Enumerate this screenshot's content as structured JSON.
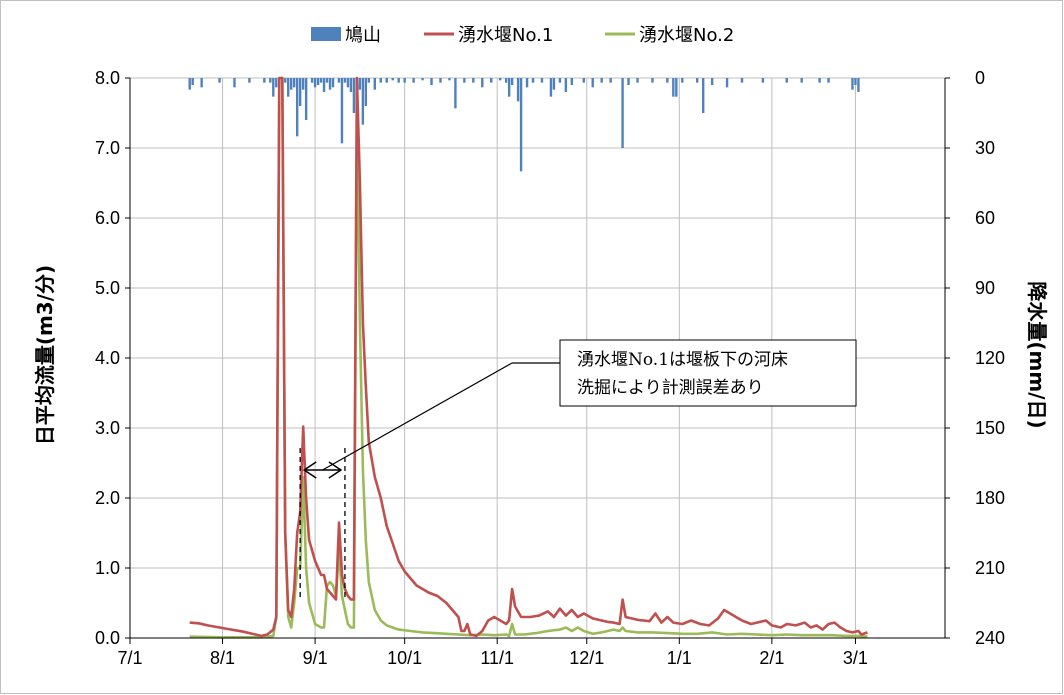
{
  "chart_data": {
    "type": "bar+line",
    "legend": {
      "position": "top",
      "entries": [
        {
          "label": "鳩山",
          "kind": "bar",
          "color": "#4f81bd"
        },
        {
          "label": "湧水堰No.1",
          "kind": "line",
          "color": "#c0504d"
        },
        {
          "label": "湧水堰No.2",
          "kind": "line",
          "color": "#9bbb59"
        }
      ]
    },
    "y_left": {
      "label": "日平均流量(m3/分)",
      "range": [
        0,
        8
      ],
      "ticks": [
        "0.0",
        "1.0",
        "2.0",
        "3.0",
        "4.0",
        "5.0",
        "6.0",
        "7.0",
        "8.0"
      ]
    },
    "y_right": {
      "label": "降水量(mm/日)",
      "range": [
        0,
        240
      ],
      "reversed": true,
      "ticks": [
        "0",
        "30",
        "60",
        "90",
        "120",
        "150",
        "180",
        "210",
        "240"
      ]
    },
    "x_axis": {
      "range_days": [
        0,
        273
      ],
      "ticks": [
        {
          "label": "7/1",
          "day": 0
        },
        {
          "label": "8/1",
          "day": 31
        },
        {
          "label": "9/1",
          "day": 62
        },
        {
          "label": "10/1",
          "day": 92
        },
        {
          "label": "11/1",
          "day": 123
        },
        {
          "label": "12/1",
          "day": 153
        },
        {
          "label": "1/1",
          "day": 184
        },
        {
          "label": "2/1",
          "day": 215
        },
        {
          "label": "3/1",
          "day": 243
        }
      ]
    },
    "grid": true,
    "annotation": {
      "lines": [
        "湧水堰No.1は堰板下の河床",
        "洗掘により計測誤差あり"
      ],
      "interval_days": [
        57,
        72
      ]
    },
    "series": [
      {
        "name": "湧水堰No.1",
        "color": "#c0504d",
        "points": [
          [
            20,
            0.22
          ],
          [
            23,
            0.21
          ],
          [
            26,
            0.18
          ],
          [
            30,
            0.15
          ],
          [
            34,
            0.12
          ],
          [
            38,
            0.09
          ],
          [
            42,
            0.05
          ],
          [
            44,
            0.03
          ],
          [
            46,
            0.05
          ],
          [
            48,
            0.12
          ],
          [
            49,
            0.3
          ],
          [
            50,
            8.0
          ],
          [
            51,
            8.0
          ],
          [
            52,
            1.5
          ],
          [
            53,
            0.4
          ],
          [
            54,
            0.3
          ],
          [
            55,
            0.7
          ],
          [
            56,
            1.5
          ],
          [
            57,
            1.8
          ],
          [
            58,
            3.02
          ],
          [
            59,
            2.0
          ],
          [
            60,
            1.4
          ],
          [
            62,
            1.1
          ],
          [
            64,
            0.9
          ],
          [
            65,
            0.9
          ],
          [
            66,
            0.7
          ],
          [
            67,
            0.65
          ],
          [
            68,
            0.6
          ],
          [
            69,
            0.55
          ],
          [
            70,
            1.65
          ],
          [
            71,
            0.9
          ],
          [
            72,
            0.7
          ],
          [
            73,
            0.6
          ],
          [
            74,
            0.55
          ],
          [
            75,
            0.55
          ],
          [
            76,
            8.0
          ],
          [
            77,
            6.5
          ],
          [
            78,
            4.5
          ],
          [
            79,
            3.6
          ],
          [
            80,
            2.8
          ],
          [
            82,
            2.3
          ],
          [
            84,
            2.0
          ],
          [
            86,
            1.6
          ],
          [
            88,
            1.35
          ],
          [
            90,
            1.1
          ],
          [
            92,
            0.95
          ],
          [
            94,
            0.85
          ],
          [
            96,
            0.75
          ],
          [
            98,
            0.7
          ],
          [
            100,
            0.65
          ],
          [
            103,
            0.6
          ],
          [
            106,
            0.5
          ],
          [
            108,
            0.4
          ],
          [
            110,
            0.3
          ],
          [
            111,
            0.1
          ],
          [
            112,
            0.1
          ],
          [
            113,
            0.2
          ],
          [
            114,
            0.05
          ],
          [
            116,
            0.03
          ],
          [
            118,
            0.1
          ],
          [
            120,
            0.25
          ],
          [
            122,
            0.3
          ],
          [
            124,
            0.25
          ],
          [
            126,
            0.2
          ],
          [
            127,
            0.25
          ],
          [
            128,
            0.7
          ],
          [
            129,
            0.45
          ],
          [
            131,
            0.3
          ],
          [
            134,
            0.3
          ],
          [
            137,
            0.32
          ],
          [
            140,
            0.38
          ],
          [
            142,
            0.3
          ],
          [
            144,
            0.42
          ],
          [
            146,
            0.32
          ],
          [
            148,
            0.4
          ],
          [
            150,
            0.3
          ],
          [
            152,
            0.35
          ],
          [
            155,
            0.28
          ],
          [
            158,
            0.25
          ],
          [
            160,
            0.23
          ],
          [
            162,
            0.22
          ],
          [
            164,
            0.2
          ],
          [
            165,
            0.55
          ],
          [
            166,
            0.3
          ],
          [
            168,
            0.28
          ],
          [
            170,
            0.26
          ],
          [
            172,
            0.25
          ],
          [
            174,
            0.24
          ],
          [
            176,
            0.35
          ],
          [
            178,
            0.22
          ],
          [
            180,
            0.3
          ],
          [
            182,
            0.22
          ],
          [
            185,
            0.2
          ],
          [
            188,
            0.25
          ],
          [
            191,
            0.2
          ],
          [
            194,
            0.18
          ],
          [
            197,
            0.28
          ],
          [
            199,
            0.4
          ],
          [
            201,
            0.35
          ],
          [
            203,
            0.3
          ],
          [
            205,
            0.25
          ],
          [
            208,
            0.2
          ],
          [
            210,
            0.22
          ],
          [
            213,
            0.25
          ],
          [
            215,
            0.18
          ],
          [
            218,
            0.15
          ],
          [
            220,
            0.2
          ],
          [
            223,
            0.18
          ],
          [
            226,
            0.22
          ],
          [
            228,
            0.15
          ],
          [
            230,
            0.18
          ],
          [
            232,
            0.12
          ],
          [
            234,
            0.2
          ],
          [
            236,
            0.22
          ],
          [
            238,
            0.15
          ],
          [
            240,
            0.1
          ],
          [
            242,
            0.08
          ],
          [
            244,
            0.1
          ],
          [
            245,
            0.05
          ],
          [
            247,
            0.08
          ]
        ]
      },
      {
        "name": "湧水堰No.2",
        "color": "#9bbb59",
        "points": [
          [
            20,
            0.02
          ],
          [
            30,
            0.01
          ],
          [
            40,
            0.01
          ],
          [
            44,
            0.01
          ],
          [
            48,
            0.03
          ],
          [
            49,
            0.3
          ],
          [
            50,
            8.0
          ],
          [
            51,
            8.0
          ],
          [
            52,
            1.5
          ],
          [
            53,
            0.3
          ],
          [
            54,
            0.15
          ],
          [
            55,
            0.5
          ],
          [
            56,
            1.0
          ],
          [
            57,
            1.0
          ],
          [
            58,
            2.3
          ],
          [
            59,
            1.0
          ],
          [
            60,
            0.5
          ],
          [
            62,
            0.2
          ],
          [
            64,
            0.15
          ],
          [
            65,
            0.15
          ],
          [
            66,
            0.75
          ],
          [
            67,
            0.8
          ],
          [
            68,
            0.75
          ],
          [
            69,
            0.6
          ],
          [
            70,
            1.3
          ],
          [
            71,
            0.6
          ],
          [
            72,
            0.4
          ],
          [
            73,
            0.2
          ],
          [
            74,
            0.15
          ],
          [
            75,
            0.15
          ],
          [
            76,
            7.6
          ],
          [
            77,
            4.5
          ],
          [
            78,
            2.4
          ],
          [
            79,
            1.4
          ],
          [
            80,
            0.8
          ],
          [
            82,
            0.4
          ],
          [
            84,
            0.25
          ],
          [
            86,
            0.18
          ],
          [
            88,
            0.15
          ],
          [
            90,
            0.12
          ],
          [
            94,
            0.1
          ],
          [
            98,
            0.08
          ],
          [
            102,
            0.07
          ],
          [
            106,
            0.06
          ],
          [
            110,
            0.05
          ],
          [
            114,
            0.04
          ],
          [
            118,
            0.05
          ],
          [
            122,
            0.04
          ],
          [
            126,
            0.05
          ],
          [
            127,
            0.03
          ],
          [
            128,
            0.2
          ],
          [
            129,
            0.05
          ],
          [
            132,
            0.05
          ],
          [
            136,
            0.07
          ],
          [
            140,
            0.1
          ],
          [
            144,
            0.12
          ],
          [
            146,
            0.15
          ],
          [
            148,
            0.1
          ],
          [
            150,
            0.15
          ],
          [
            152,
            0.1
          ],
          [
            155,
            0.06
          ],
          [
            158,
            0.08
          ],
          [
            160,
            0.1
          ],
          [
            162,
            0.12
          ],
          [
            164,
            0.1
          ],
          [
            165,
            0.15
          ],
          [
            166,
            0.1
          ],
          [
            170,
            0.08
          ],
          [
            175,
            0.08
          ],
          [
            180,
            0.07
          ],
          [
            185,
            0.06
          ],
          [
            190,
            0.06
          ],
          [
            195,
            0.08
          ],
          [
            200,
            0.05
          ],
          [
            205,
            0.06
          ],
          [
            210,
            0.05
          ],
          [
            215,
            0.04
          ],
          [
            220,
            0.05
          ],
          [
            225,
            0.04
          ],
          [
            230,
            0.04
          ],
          [
            235,
            0.04
          ],
          [
            240,
            0.03
          ],
          [
            244,
            0.03
          ],
          [
            247,
            0.02
          ]
        ]
      },
      {
        "name": "鳩山",
        "type": "bar",
        "color": "#4f81bd",
        "points": [
          [
            20,
            5
          ],
          [
            21,
            3
          ],
          [
            24,
            4
          ],
          [
            30,
            2
          ],
          [
            35,
            4
          ],
          [
            40,
            2
          ],
          [
            45,
            2
          ],
          [
            47,
            2
          ],
          [
            48,
            8
          ],
          [
            49,
            4
          ],
          [
            50,
            17
          ],
          [
            51,
            13
          ],
          [
            52,
            2
          ],
          [
            53,
            8
          ],
          [
            54,
            5
          ],
          [
            55,
            4
          ],
          [
            56,
            25
          ],
          [
            57,
            12
          ],
          [
            58,
            5
          ],
          [
            59,
            18
          ],
          [
            61,
            2
          ],
          [
            62,
            4
          ],
          [
            63,
            3
          ],
          [
            64,
            2
          ],
          [
            65,
            6
          ],
          [
            66,
            2
          ],
          [
            67,
            5
          ],
          [
            68,
            4
          ],
          [
            70,
            2
          ],
          [
            71,
            28
          ],
          [
            72,
            2
          ],
          [
            73,
            4
          ],
          [
            74,
            6
          ],
          [
            75,
            15
          ],
          [
            76,
            17
          ],
          [
            77,
            5
          ],
          [
            78,
            20
          ],
          [
            79,
            12
          ],
          [
            80,
            2
          ],
          [
            82,
            5
          ],
          [
            84,
            2
          ],
          [
            86,
            2
          ],
          [
            88,
            1
          ],
          [
            90,
            2
          ],
          [
            92,
            2
          ],
          [
            95,
            2
          ],
          [
            98,
            1
          ],
          [
            101,
            3
          ],
          [
            104,
            2
          ],
          [
            107,
            1
          ],
          [
            109,
            13
          ],
          [
            112,
            2
          ],
          [
            115,
            2
          ],
          [
            118,
            4
          ],
          [
            121,
            2
          ],
          [
            124,
            1
          ],
          [
            126,
            2
          ],
          [
            127,
            8
          ],
          [
            128,
            3
          ],
          [
            130,
            10
          ],
          [
            131,
            40
          ],
          [
            133,
            4
          ],
          [
            135,
            2
          ],
          [
            138,
            2
          ],
          [
            141,
            8
          ],
          [
            142,
            5
          ],
          [
            144,
            2
          ],
          [
            146,
            6
          ],
          [
            148,
            3
          ],
          [
            152,
            2
          ],
          [
            155,
            4
          ],
          [
            158,
            2
          ],
          [
            161,
            2
          ],
          [
            165,
            30
          ],
          [
            167,
            3
          ],
          [
            170,
            2
          ],
          [
            175,
            2
          ],
          [
            180,
            2
          ],
          [
            182,
            8
          ],
          [
            183,
            8
          ],
          [
            185,
            2
          ],
          [
            190,
            2
          ],
          [
            192,
            15
          ],
          [
            195,
            3
          ],
          [
            200,
            4
          ],
          [
            205,
            2
          ],
          [
            212,
            2
          ],
          [
            220,
            2
          ],
          [
            225,
            2
          ],
          [
            231,
            2
          ],
          [
            234,
            2
          ],
          [
            242,
            5
          ],
          [
            243,
            3
          ],
          [
            244,
            6
          ]
        ]
      }
    ]
  }
}
